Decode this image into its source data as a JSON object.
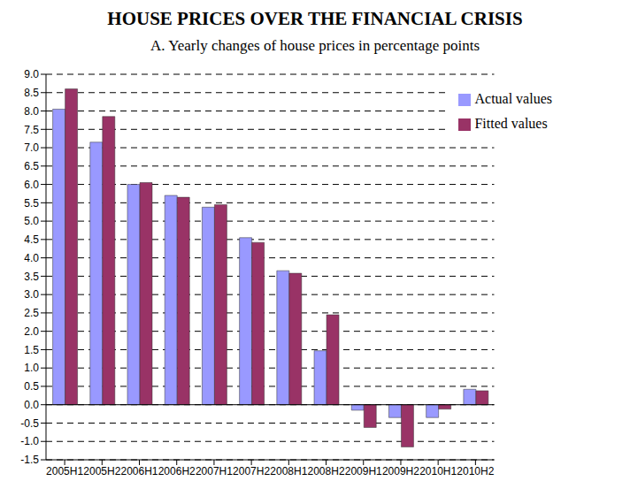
{
  "chart_data": {
    "type": "bar",
    "title": "HOUSE PRICES OVER THE FINANCIAL CRISIS",
    "subtitle": "A. Yearly changes of house prices in percentage points",
    "categories": [
      "2005H1",
      "2005H2",
      "2006H1",
      "2006H2",
      "2007H1",
      "2007H2",
      "2008H1",
      "2008H2",
      "2009H1",
      "2009H2",
      "2010H1",
      "2010H2"
    ],
    "series": [
      {
        "name": "Actual values",
        "color": "#9999ff",
        "values": [
          8.05,
          7.15,
          6.0,
          5.7,
          5.38,
          4.55,
          3.65,
          1.47,
          -0.15,
          -0.35,
          -0.35,
          0.42
        ]
      },
      {
        "name": "Fitted values",
        "color": "#993366",
        "values": [
          8.6,
          7.85,
          6.05,
          5.65,
          5.45,
          4.42,
          3.58,
          2.45,
          -0.62,
          -1.15,
          -0.12,
          0.38
        ]
      }
    ],
    "ylim": [
      -1.5,
      9.0
    ],
    "yticks": [
      {
        "value": -1.5,
        "label": "-1.5"
      },
      {
        "value": -1,
        "label": "-1.0"
      },
      -0.5,
      {
        "value": 0,
        "label": "0.0"
      },
      0.5,
      {
        "value": 1,
        "label": "1.0"
      },
      1.5,
      {
        "value": 2,
        "label": "2.0"
      },
      2.5,
      {
        "value": 3,
        "label": "3.0"
      },
      3.5,
      {
        "value": 4,
        "label": "4.0"
      },
      4.5,
      {
        "value": 5,
        "label": "5.0"
      },
      5.5,
      {
        "value": 6,
        "label": "6.0"
      },
      6.5,
      {
        "value": 7,
        "label": "7.0"
      },
      7.5,
      {
        "value": 8,
        "label": "8.0"
      },
      8.5,
      {
        "value": 9,
        "label": "9.0"
      }
    ],
    "grid": true,
    "legend": "upper right"
  }
}
